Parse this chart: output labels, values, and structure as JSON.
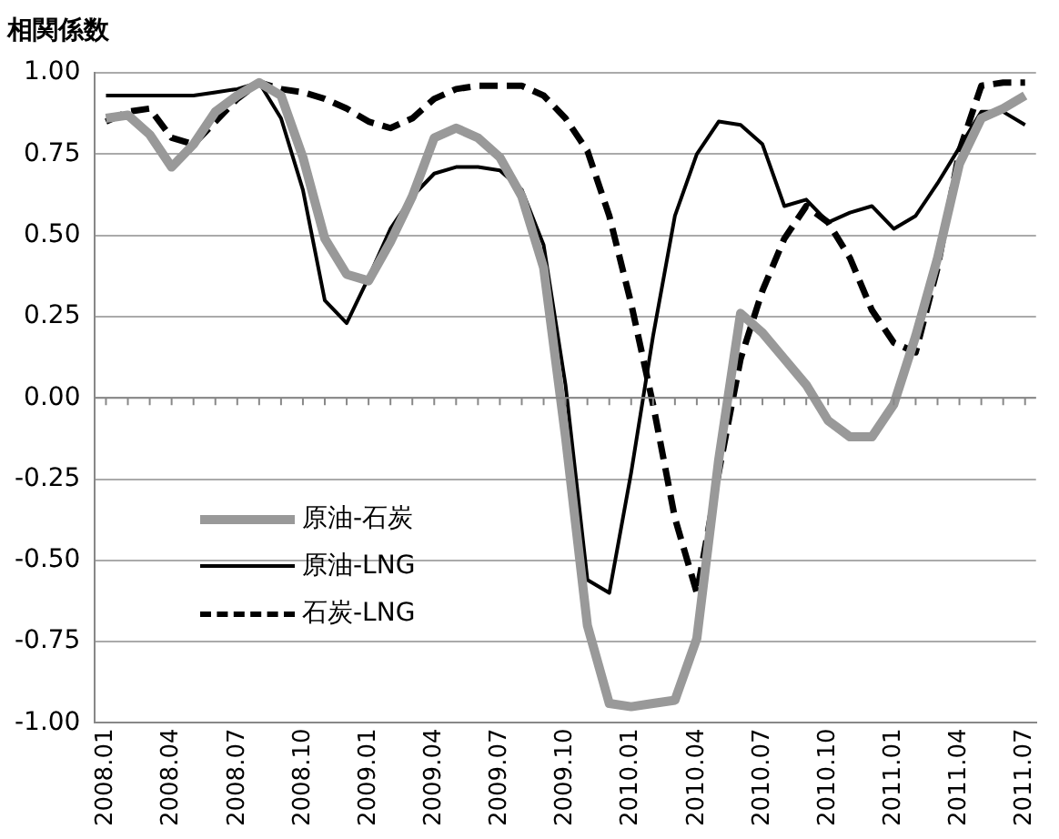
{
  "chart_data": {
    "type": "line",
    "ylabel": "相関係数",
    "categories": [
      "2008.01",
      null,
      null,
      "2008.04",
      null,
      null,
      "2008.07",
      null,
      null,
      "2008.10",
      null,
      null,
      "2009.01",
      null,
      null,
      "2009.04",
      null,
      null,
      "2009.07",
      null,
      null,
      "2009.10",
      null,
      null,
      "2010.01",
      null,
      null,
      "2010.04",
      null,
      null,
      "2010.07",
      null,
      null,
      "2010.10",
      null,
      null,
      "2011.01",
      null,
      null,
      "2011.04",
      null,
      null,
      "2011.07"
    ],
    "series": [
      {
        "name": "原油-石炭",
        "color": "#999999",
        "line_style": "solid",
        "values": [
          0.86,
          0.87,
          0.81,
          0.71,
          0.78,
          0.88,
          0.93,
          0.97,
          0.93,
          0.74,
          0.49,
          0.38,
          0.36,
          0.48,
          0.62,
          0.8,
          0.83,
          0.8,
          0.74,
          0.62,
          0.4,
          -0.12,
          -0.7,
          -0.94,
          -0.95,
          -0.94,
          -0.93,
          -0.74,
          -0.19,
          0.26,
          0.2,
          0.12,
          0.04,
          -0.07,
          -0.12,
          -0.12,
          -0.02,
          0.19,
          0.43,
          0.72,
          0.86,
          0.89,
          0.93
        ]
      },
      {
        "name": "原油-LNG",
        "color": "#000000",
        "line_style": "solid",
        "values": [
          0.93,
          0.93,
          0.93,
          0.93,
          0.93,
          0.94,
          0.95,
          0.97,
          0.86,
          0.64,
          0.3,
          0.23,
          0.37,
          0.52,
          0.62,
          0.69,
          0.71,
          0.71,
          0.7,
          0.64,
          0.47,
          0.04,
          -0.56,
          -0.6,
          -0.23,
          0.19,
          0.56,
          0.75,
          0.85,
          0.84,
          0.78,
          0.59,
          0.61,
          0.54,
          0.57,
          0.59,
          0.52,
          0.56,
          0.66,
          0.77,
          0.88,
          0.88,
          0.84
        ]
      },
      {
        "name": "石炭-LNG",
        "color": "#000000",
        "line_style": "dashed",
        "values": [
          0.85,
          0.88,
          0.89,
          0.8,
          0.78,
          0.85,
          0.92,
          0.97,
          0.95,
          0.94,
          0.92,
          0.89,
          0.85,
          0.83,
          0.86,
          0.92,
          0.95,
          0.96,
          0.96,
          0.96,
          0.93,
          0.86,
          0.76,
          0.56,
          0.29,
          -0.02,
          -0.37,
          -0.6,
          -0.23,
          0.12,
          0.33,
          0.49,
          0.59,
          0.54,
          0.43,
          0.27,
          0.17,
          0.14,
          0.4,
          0.76,
          0.96,
          0.97,
          0.97
        ]
      }
    ],
    "ylim": [
      -1,
      1
    ],
    "yticks": [
      {
        "value": -1,
        "label": "-1.00"
      },
      {
        "value": -0.75,
        "label": "-0.75"
      },
      {
        "value": -0.5,
        "label": "-0.50"
      },
      {
        "value": -0.25,
        "label": "-0.25"
      },
      {
        "value": 0,
        "label": "0.00"
      },
      {
        "value": 0.25,
        "label": "0.25"
      },
      {
        "value": 0.5,
        "label": "0.50"
      },
      {
        "value": 0.75,
        "label": "0.75"
      },
      {
        "value": 1,
        "label": "1.00"
      }
    ],
    "grid": "y",
    "legend": "bottom left",
    "marker": "none"
  }
}
